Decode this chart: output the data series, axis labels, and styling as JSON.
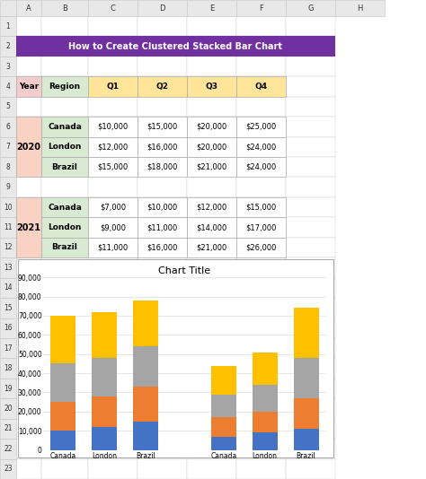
{
  "title": "How to Create Clustered Stacked Bar Chart",
  "chart_title": "Chart Title",
  "data_2020": {
    "year": "2020",
    "rows": [
      {
        "region": "Canada",
        "Q1": 10000,
        "Q2": 15000,
        "Q3": 20000,
        "Q4": 25000
      },
      {
        "region": "London",
        "Q1": 12000,
        "Q2": 16000,
        "Q3": 20000,
        "Q4": 24000
      },
      {
        "region": "Brazil",
        "Q1": 15000,
        "Q2": 18000,
        "Q3": 21000,
        "Q4": 24000
      }
    ]
  },
  "data_2021": {
    "year": "2021",
    "rows": [
      {
        "region": "Canada",
        "Q1": 7000,
        "Q2": 10000,
        "Q3": 12000,
        "Q4": 15000
      },
      {
        "region": "London",
        "Q1": 9000,
        "Q2": 11000,
        "Q3": 14000,
        "Q4": 17000
      },
      {
        "region": "Brazil",
        "Q1": 11000,
        "Q2": 16000,
        "Q3": 21000,
        "Q4": 26000
      }
    ]
  },
  "q_colors": [
    "#4472C4",
    "#ED7D31",
    "#A5A5A5",
    "#FFC000"
  ],
  "q_labels": [
    "Q1",
    "Q2",
    "Q3",
    "Q4"
  ],
  "ylim": [
    0,
    90000
  ],
  "yticks": [
    0,
    10000,
    20000,
    30000,
    40000,
    50000,
    60000,
    70000,
    80000,
    90000
  ],
  "col_labels": [
    "A",
    "B",
    "C",
    "D",
    "E",
    "F",
    "G",
    "H"
  ],
  "row_labels": [
    "1",
    "2",
    "3",
    "4",
    "5",
    "6",
    "7",
    "8",
    "9",
    "10",
    "11",
    "12",
    "13",
    "14",
    "15",
    "16",
    "17",
    "18",
    "19",
    "20",
    "21",
    "22",
    "23"
  ],
  "excel_col_bg": "#E8E8E8",
  "excel_row_bg": "#E8E8E8",
  "excel_grid": "#CCCCCC",
  "title_bg": "#7030A0",
  "title_fg": "#FFFFFF",
  "header_bg_year": "#F4CCCC",
  "header_bg_region": "#D9EAD3",
  "header_bg_q": "#FFE599",
  "data_year_bg": "#F9D2C3",
  "data_region_bg": "#D9EAD3",
  "bg_color": "#FFFFFF",
  "chart_border": "#AAAAAA"
}
